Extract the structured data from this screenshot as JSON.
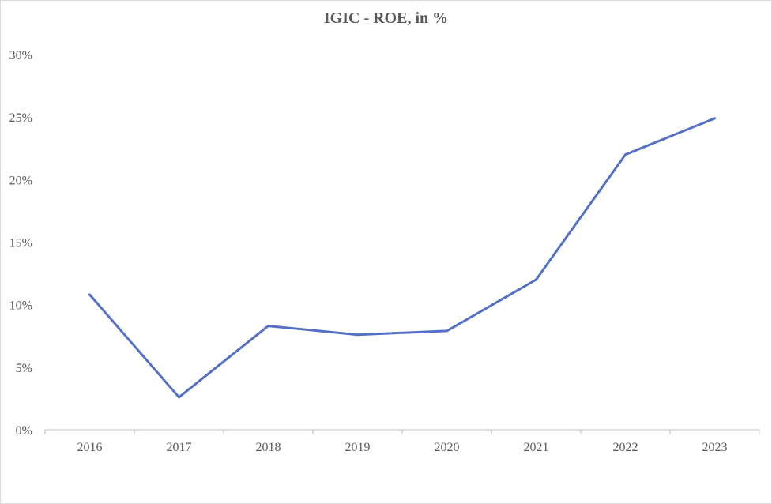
{
  "chart_data": {
    "type": "line",
    "title": "IGIC - ROE, in %",
    "xlabel": "",
    "ylabel": "",
    "categories": [
      "2016",
      "2017",
      "2018",
      "2019",
      "2020",
      "2021",
      "2022",
      "2023"
    ],
    "series": [
      {
        "values": [
          10.8,
          2.6,
          8.3,
          7.6,
          7.9,
          12.0,
          22.0,
          24.9
        ],
        "color": "#5470c6"
      }
    ],
    "ylim": [
      0,
      30
    ],
    "yticks": [
      0,
      5,
      10,
      15,
      20,
      25,
      30
    ],
    "ytick_labels": [
      "0%",
      "5%",
      "10%",
      "15%",
      "20%",
      "25%",
      "30%"
    ],
    "grid": false,
    "legend": "none"
  }
}
